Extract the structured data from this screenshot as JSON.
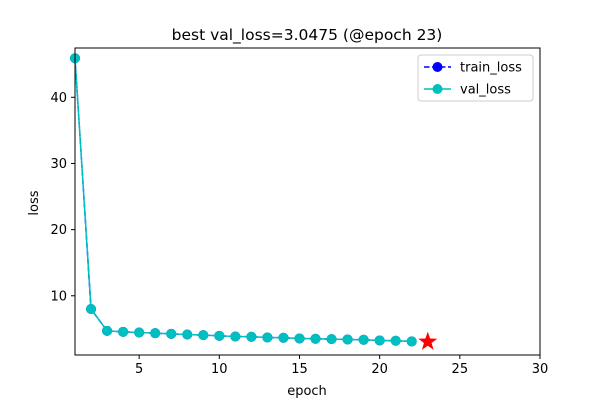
{
  "chart_data": {
    "type": "line",
    "title": "best val_loss=3.0475 (@epoch 23)",
    "xlabel": "epoch",
    "ylabel": "loss",
    "xlim": [
      1,
      30
    ],
    "ylim": [
      1.05,
      47.45
    ],
    "xticks": [
      5,
      10,
      15,
      20,
      25,
      30
    ],
    "yticks": [
      10,
      20,
      30,
      40
    ],
    "grid": false,
    "legend": "top-right",
    "series": [
      {
        "name": "train_loss",
        "style": "dashed",
        "marker": "circle",
        "color": "#0000ff",
        "x": [
          1,
          2,
          3,
          4,
          5,
          6,
          7,
          8,
          9,
          10,
          11,
          12,
          13,
          14,
          15,
          16,
          17,
          18,
          19,
          20,
          21,
          22
        ],
        "y": [
          45.9,
          8.0,
          4.7,
          4.55,
          4.45,
          4.35,
          4.25,
          4.15,
          4.05,
          3.95,
          3.85,
          3.8,
          3.7,
          3.65,
          3.55,
          3.5,
          3.45,
          3.4,
          3.35,
          3.25,
          3.2,
          3.1
        ]
      },
      {
        "name": "val_loss",
        "style": "solid",
        "marker": "circle",
        "color": "#00bfbf",
        "x": [
          1,
          2,
          3,
          4,
          5,
          6,
          7,
          8,
          9,
          10,
          11,
          12,
          13,
          14,
          15,
          16,
          17,
          18,
          19,
          20,
          21,
          22
        ],
        "y": [
          45.9,
          8.0,
          4.7,
          4.55,
          4.45,
          4.35,
          4.25,
          4.15,
          4.05,
          3.95,
          3.85,
          3.8,
          3.7,
          3.65,
          3.55,
          3.5,
          3.45,
          3.4,
          3.35,
          3.25,
          3.2,
          3.1
        ]
      }
    ],
    "best_marker": {
      "x": 23,
      "y": 3.0475,
      "shape": "star",
      "color": "#ff0000"
    }
  }
}
